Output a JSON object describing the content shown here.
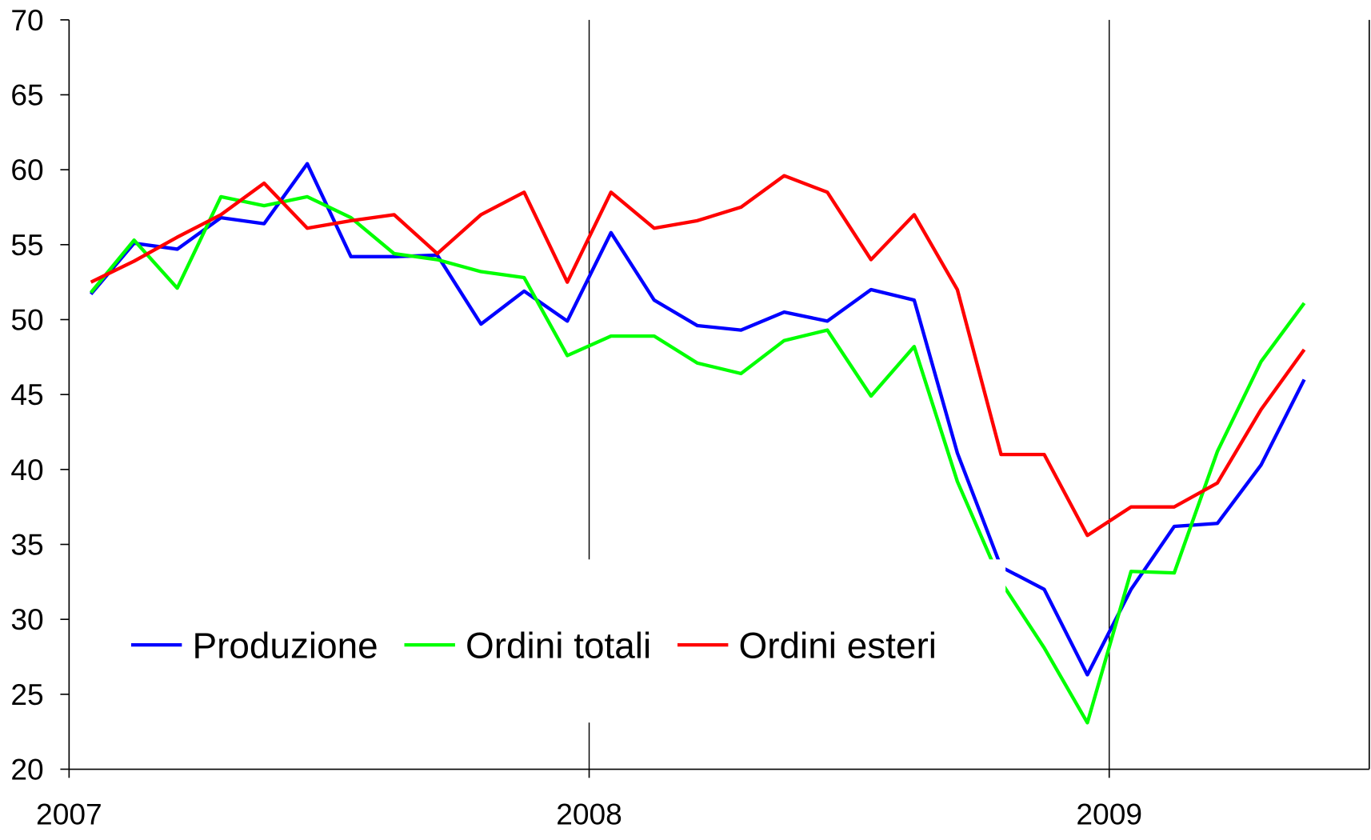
{
  "chart_data": {
    "type": "line",
    "x": [
      2007.042,
      2007.125,
      2007.208,
      2007.292,
      2007.375,
      2007.458,
      2007.542,
      2007.625,
      2007.708,
      2007.792,
      2007.875,
      2007.958,
      2008.042,
      2008.125,
      2008.208,
      2008.292,
      2008.375,
      2008.458,
      2008.542,
      2008.625,
      2008.708,
      2008.792,
      2008.875,
      2008.958,
      2009.042,
      2009.125,
      2009.208,
      2009.292,
      2009.375
    ],
    "series": [
      {
        "name": "Produzione",
        "color": "#0000ff",
        "values": [
          51.7,
          55.1,
          54.7,
          56.8,
          56.4,
          60.4,
          54.2,
          54.2,
          54.3,
          49.7,
          51.9,
          49.9,
          55.8,
          51.3,
          49.6,
          49.3,
          50.5,
          49.9,
          52.0,
          51.3,
          41.1,
          33.5,
          32.0,
          26.3,
          32.0,
          36.2,
          36.4,
          40.3,
          46.0
        ]
      },
      {
        "name": "Ordini totali",
        "color": "#00ff00",
        "values": [
          51.8,
          55.3,
          52.1,
          58.2,
          57.6,
          58.2,
          56.8,
          54.4,
          54.0,
          53.2,
          52.8,
          47.6,
          48.9,
          48.9,
          47.1,
          46.4,
          48.6,
          49.3,
          44.9,
          48.2,
          39.2,
          32.5,
          28.1,
          23.1,
          33.2,
          33.1,
          41.2,
          47.2,
          51.1
        ]
      },
      {
        "name": "Ordini esteri",
        "color": "#ff0000",
        "values": [
          52.5,
          53.9,
          55.5,
          57.0,
          59.1,
          56.1,
          56.6,
          57.0,
          54.4,
          57.0,
          58.5,
          52.5,
          58.5,
          56.1,
          56.6,
          57.5,
          59.6,
          58.5,
          54.0,
          57.0,
          52.0,
          41.0,
          41.0,
          35.6,
          37.5,
          37.5,
          39.1,
          44.0,
          48.0
        ]
      }
    ],
    "xlim": [
      2007,
      2009.5
    ],
    "xticks": [
      2007,
      2008,
      2009
    ],
    "ylim": [
      20,
      70
    ],
    "yticks": [
      20,
      25,
      30,
      35,
      40,
      45,
      50,
      55,
      60,
      65,
      70
    ],
    "grid": true,
    "legend": "lower left"
  }
}
